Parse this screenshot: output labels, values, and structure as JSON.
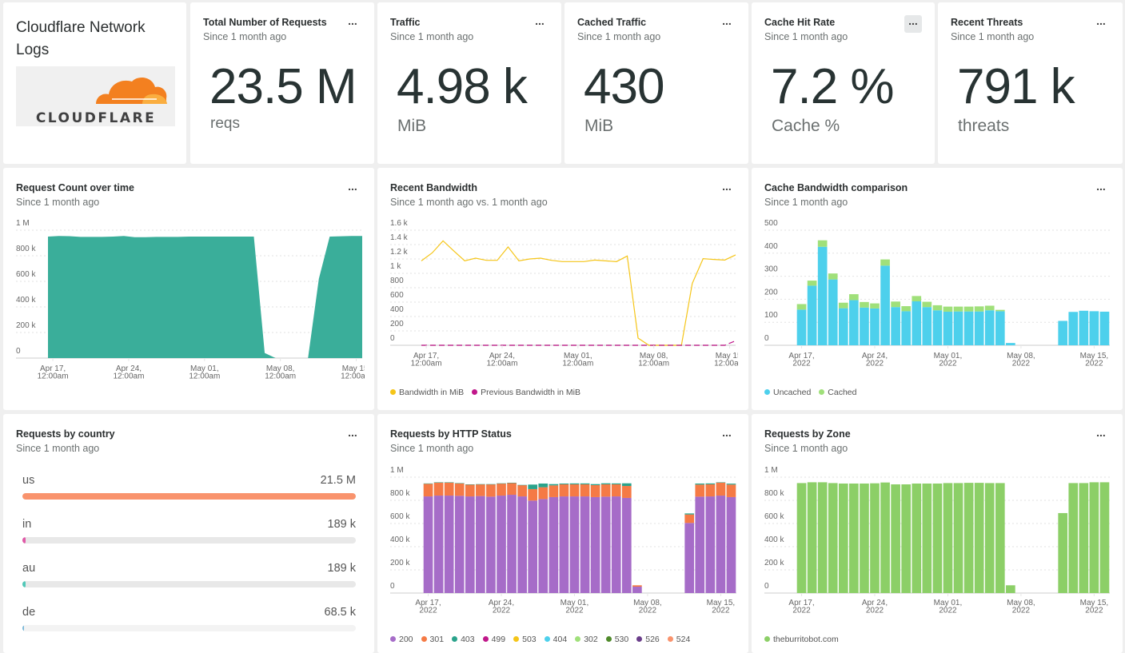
{
  "logo_card": {
    "title": "Cloudflare Network Logs",
    "logo_text": "CLOUDFLARE"
  },
  "more_label": "...",
  "stats": [
    {
      "title": "Total Number of Requests",
      "subtitle": "Since 1 month ago",
      "value": "23.5 M",
      "unit": "reqs"
    },
    {
      "title": "Traffic",
      "subtitle": "Since 1 month ago",
      "value": "4.98 k",
      "unit": "MiB"
    },
    {
      "title": "Cached Traffic",
      "subtitle": "Since 1 month ago",
      "value": "430",
      "unit": "MiB"
    },
    {
      "title": "Cache Hit Rate",
      "subtitle": "Since 1 month ago",
      "value": "7.2 %",
      "unit": "Cache %"
    },
    {
      "title": "Recent Threats",
      "subtitle": "Since 1 month ago",
      "value": "791 k",
      "unit": "threats"
    }
  ],
  "country_card": {
    "title": "Requests by country",
    "subtitle": "Since 1 month ago",
    "rows": [
      {
        "code": "us",
        "value": "21.5 M",
        "fraction": 1.0,
        "color": "#f9936d"
      },
      {
        "code": "in",
        "value": "189 k",
        "fraction": 0.009,
        "color": "#e05aa8"
      },
      {
        "code": "au",
        "value": "189 k",
        "fraction": 0.009,
        "color": "#52c8b8"
      },
      {
        "code": "de",
        "value": "68.5 k",
        "fraction": 0.003,
        "color": "#7ab8d8"
      }
    ]
  },
  "chart_data": [
    {
      "id": "request-count",
      "type": "area",
      "title": "Request Count over time",
      "subtitle": "Since 1 month ago",
      "x_start": "2022-04-16",
      "x_ticks": [
        [
          "Apr 17,",
          "12:00am"
        ],
        [
          "Apr 24,",
          "12:00am"
        ],
        [
          "May 01,",
          "12:00am"
        ],
        [
          "May 08,",
          "12:00am"
        ],
        [
          "May 15,",
          "12:00am"
        ]
      ],
      "x_tick_dates": [
        "2022-04-17",
        "2022-04-24",
        "2022-05-01",
        "2022-05-08",
        "2022-05-15"
      ],
      "y_ticks": [
        0,
        200000,
        400000,
        600000,
        800000,
        1000000
      ],
      "y_tick_labels": [
        "0",
        "200 k",
        "400 k",
        "600 k",
        "800 k",
        "1 M"
      ],
      "ylim": [
        0,
        1000000
      ],
      "grid": true,
      "series": [
        {
          "color": "#3aae9a",
          "values": [
            950000,
            955000,
            953000,
            948000,
            948000,
            948000,
            950000,
            955000,
            945000,
            945000,
            948000,
            948000,
            948000,
            950000,
            950000,
            950000,
            950000,
            950000,
            950000,
            950000,
            40000,
            0,
            0,
            0,
            0,
            620000,
            950000,
            952000,
            955000,
            955000
          ]
        }
      ]
    },
    {
      "id": "recent-bandwidth",
      "type": "line",
      "title": "Recent Bandwidth",
      "subtitle": "Since 1 month ago vs. 1 month ago",
      "x_start": "2022-04-16",
      "x_ticks": [
        [
          "Apr 17,",
          "12:00am"
        ],
        [
          "Apr 24,",
          "12:00am"
        ],
        [
          "May 01,",
          "12:00am"
        ],
        [
          "May 08,",
          "12:00am"
        ],
        [
          "May 15,",
          "12:00am"
        ]
      ],
      "x_tick_dates": [
        "2022-04-17",
        "2022-04-24",
        "2022-05-01",
        "2022-05-08",
        "2022-05-15"
      ],
      "y_ticks": [
        0,
        200,
        400,
        600,
        800,
        1000,
        1200,
        1400,
        1600
      ],
      "y_tick_labels": [
        "0",
        "200",
        "400",
        "600",
        "800",
        "1 k",
        "1.2 k",
        "1.4 k",
        "1.6 k"
      ],
      "ylim": [
        0,
        1600
      ],
      "grid": true,
      "legend": "bottom-left",
      "series": [
        {
          "name": "Bandwidth in MiB",
          "color": "#f5c518",
          "dashed": false,
          "values": [
            1174,
            1285,
            1452,
            1311,
            1174,
            1211,
            1181,
            1181,
            1367,
            1174,
            1200,
            1211,
            1181,
            1163,
            1163,
            1163,
            1185,
            1174,
            1163,
            1241,
            100,
            0,
            0,
            0,
            0,
            859,
            1204,
            1193,
            1185,
            1256
          ]
        },
        {
          "name": "Previous Bandwidth in MiB",
          "color": "#c0178a",
          "dashed": true,
          "values": [
            0,
            0,
            0,
            0,
            0,
            0,
            0,
            0,
            0,
            0,
            0,
            0,
            0,
            0,
            0,
            0,
            0,
            0,
            0,
            0,
            0,
            0,
            0,
            0,
            0,
            0,
            0,
            0,
            0,
            63
          ]
        }
      ]
    },
    {
      "id": "cache-bandwidth",
      "type": "bar",
      "stacked": true,
      "title": "Cache Bandwidth comparison",
      "subtitle": "Since 1 month ago",
      "x_start": "2022-04-17",
      "x_ticks": [
        [
          "Apr 17,",
          "2022"
        ],
        [
          "Apr 24,",
          "2022"
        ],
        [
          "May 01,",
          "2022"
        ],
        [
          "May 08,",
          "2022"
        ],
        [
          "May 15,",
          "2022"
        ]
      ],
      "x_tick_dates": [
        "2022-04-17",
        "2022-04-24",
        "2022-05-01",
        "2022-05-08",
        "2022-05-15"
      ],
      "y_ticks": [
        0,
        100,
        200,
        300,
        400,
        500
      ],
      "y_tick_labels": [
        "0",
        "100",
        "200",
        "300",
        "400",
        "500"
      ],
      "ylim": [
        0,
        500
      ],
      "grid": true,
      "legend": "bottom-left",
      "series": [
        {
          "name": "Uncached",
          "color": "#4dd0ec",
          "values": [
            155,
            259,
            428,
            286,
            161,
            196,
            164,
            160,
            346,
            166,
            148,
            191,
            166,
            152,
            146,
            147,
            147,
            147,
            152,
            148,
            10,
            0,
            0,
            0,
            0,
            106,
            145,
            150,
            148,
            146
          ]
        },
        {
          "name": "Cached",
          "color": "#a0e07a",
          "values": [
            24,
            22,
            28,
            26,
            24,
            26,
            24,
            22,
            27,
            24,
            22,
            23,
            23,
            22,
            22,
            21,
            21,
            22,
            20,
            6,
            0,
            0,
            0,
            0,
            0,
            0,
            0,
            0,
            0,
            0
          ]
        }
      ]
    },
    {
      "id": "http-status",
      "type": "bar",
      "stacked": true,
      "title": "Requests by HTTP Status",
      "subtitle": "Since 1 month ago",
      "x_start": "2022-04-17",
      "x_ticks": [
        [
          "Apr 17,",
          "2022"
        ],
        [
          "Apr 24,",
          "2022"
        ],
        [
          "May 01,",
          "2022"
        ],
        [
          "May 08,",
          "2022"
        ],
        [
          "May 15,",
          "2022"
        ]
      ],
      "x_tick_dates": [
        "2022-04-17",
        "2022-04-24",
        "2022-05-01",
        "2022-05-08",
        "2022-05-15"
      ],
      "y_ticks": [
        0,
        200000,
        400000,
        600000,
        800000,
        1000000
      ],
      "y_tick_labels": [
        "0",
        "200 k",
        "400 k",
        "600 k",
        "800 k",
        "1 M"
      ],
      "ylim": [
        0,
        1000000
      ],
      "grid": true,
      "legend": "bottom-left",
      "series": [
        {
          "name": "200",
          "color": "#a66cc8",
          "values": [
            834000,
            841000,
            841000,
            839000,
            834000,
            837000,
            832000,
            841000,
            848000,
            834000,
            798000,
            811000,
            828000,
            834000,
            834000,
            834000,
            828000,
            832000,
            834000,
            821000,
            55000,
            0,
            0,
            0,
            0,
            605000,
            832000,
            834000,
            841000,
            828000
          ]
        },
        {
          "name": "301",
          "color": "#f57a45",
          "values": [
            109000,
            113000,
            113000,
            108000,
            102000,
            101000,
            106000,
            104000,
            102000,
            97000,
            99000,
            102000,
            101000,
            104000,
            104000,
            104000,
            103000,
            106000,
            104000,
            103000,
            12000,
            0,
            0,
            0,
            0,
            73000,
            104000,
            104000,
            113000,
            108000
          ]
        },
        {
          "name": "403",
          "color": "#2aa38b",
          "values": [
            3000,
            2000,
            2000,
            2000,
            2000,
            2000,
            2000,
            2000,
            2000,
            2000,
            39000,
            32000,
            11000,
            7000,
            8000,
            8000,
            9000,
            9000,
            8000,
            23000,
            0,
            0,
            0,
            0,
            0,
            9000,
            9000,
            8000,
            2000,
            8000
          ]
        },
        {
          "name": "499",
          "color": "#c0178a",
          "values": []
        },
        {
          "name": "503",
          "color": "#f5c518",
          "values": []
        },
        {
          "name": "404",
          "color": "#4dd0ec",
          "values": []
        },
        {
          "name": "302",
          "color": "#a0e07a",
          "values": []
        },
        {
          "name": "530",
          "color": "#4f8a2a",
          "values": []
        },
        {
          "name": "526",
          "color": "#6a3d8a",
          "values": []
        },
        {
          "name": "524",
          "color": "#f9936d",
          "values": []
        }
      ]
    },
    {
      "id": "requests-by-zone",
      "type": "bar",
      "stacked": true,
      "title": "Requests by Zone",
      "subtitle": "Since 1 month ago",
      "x_start": "2022-04-17",
      "x_ticks": [
        [
          "Apr 17,",
          "2022"
        ],
        [
          "Apr 24,",
          "2022"
        ],
        [
          "May 01,",
          "2022"
        ],
        [
          "May 08,",
          "2022"
        ],
        [
          "May 15,",
          "2022"
        ]
      ],
      "x_tick_dates": [
        "2022-04-17",
        "2022-04-24",
        "2022-05-01",
        "2022-05-08",
        "2022-05-15"
      ],
      "y_ticks": [
        0,
        200000,
        400000,
        600000,
        800000,
        1000000
      ],
      "y_tick_labels": [
        "0",
        "200 k",
        "400 k",
        "600 k",
        "800 k",
        "1 M"
      ],
      "ylim": [
        0,
        1000000
      ],
      "grid": true,
      "legend": "bottom-left",
      "series": [
        {
          "name": "theburritobot.com",
          "color": "#8ccf67",
          "values": [
            949000,
            956000,
            956000,
            949000,
            945000,
            945000,
            945000,
            947000,
            954000,
            938000,
            938000,
            945000,
            945000,
            945000,
            949000,
            949000,
            951000,
            951000,
            949000,
            949000,
            67000,
            0,
            0,
            0,
            0,
            690000,
            949000,
            949000,
            956000,
            956000
          ]
        }
      ]
    }
  ]
}
